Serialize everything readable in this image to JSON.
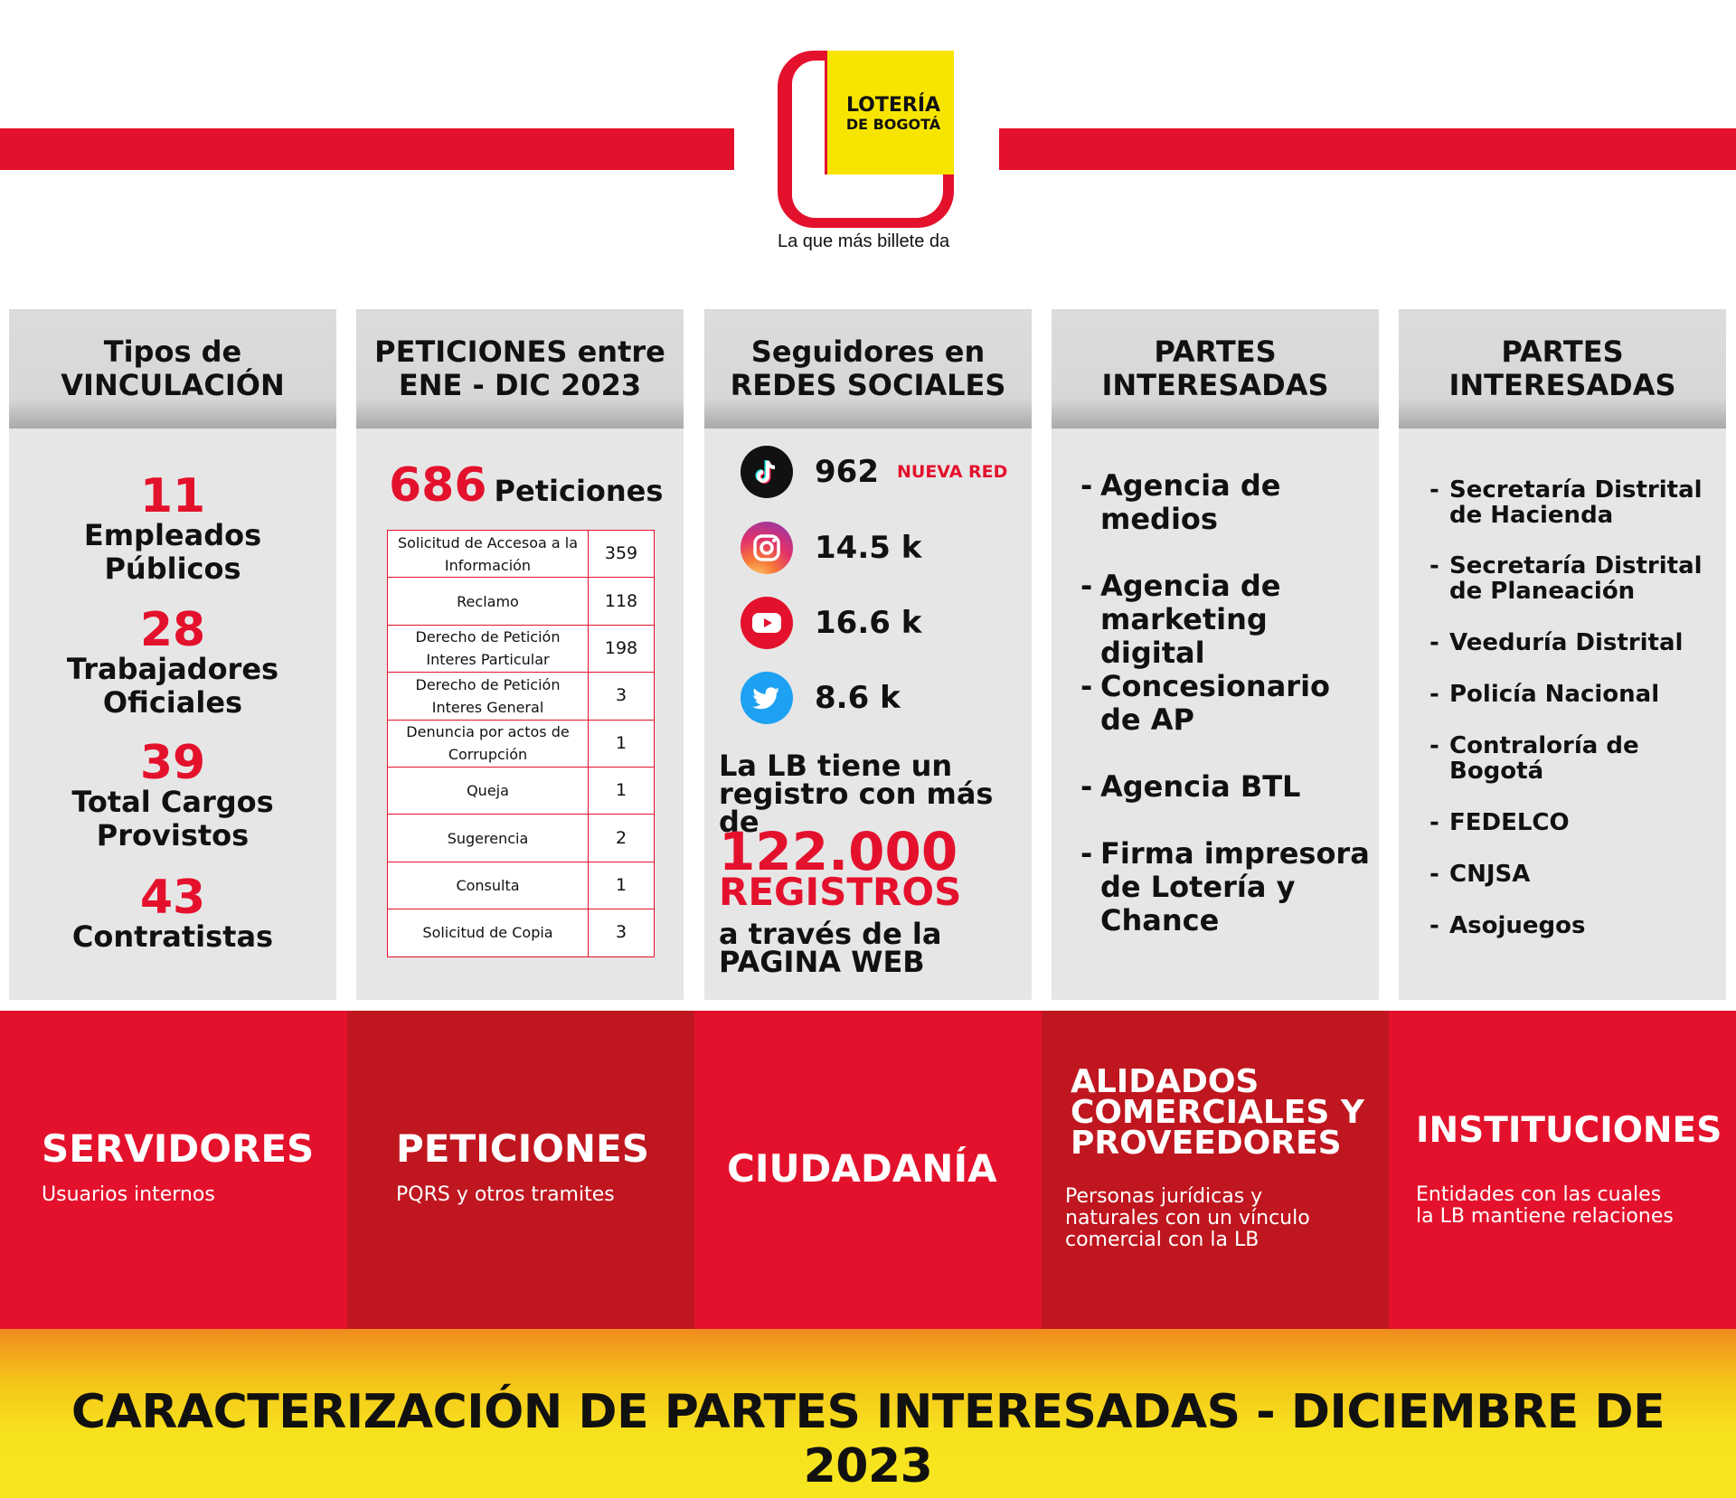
{
  "brand": {
    "logo_line1": "LOTERÍA",
    "logo_line2": "DE BOGOTÁ",
    "tagline": "La que más billete da",
    "red": "#e4112c",
    "yellow": "#f7e500"
  },
  "columns": {
    "vinculacion": {
      "title_line1": "Tipos de",
      "title_line2": "VINCULACIÓN",
      "items": [
        {
          "num": "11",
          "line1": "Empleados",
          "line2": "Públicos"
        },
        {
          "num": "28",
          "line1": "Trabajadores",
          "line2": "Oficiales"
        },
        {
          "num": "39",
          "line1": "Total Cargos",
          "line2": "Provistos"
        },
        {
          "num": "43",
          "line1": "Contratistas",
          "line2": ""
        }
      ]
    },
    "peticiones": {
      "title_line1": "PETICIONES entre",
      "title_line2": "ENE - DIC 2023",
      "total_number": "686",
      "total_label": "Peticiones",
      "rows": [
        {
          "label_line1": "Solicitud de Accesoa a la",
          "label_line2": "Información",
          "value": "359"
        },
        {
          "label_line1": "Reclamo",
          "label_line2": "",
          "value": "118"
        },
        {
          "label_line1": "Derecho de Petición",
          "label_line2": "Interes Particular",
          "value": "198"
        },
        {
          "label_line1": "Derecho de Petición",
          "label_line2": "Interes General",
          "value": "3"
        },
        {
          "label_line1": "Denuncia por actos de",
          "label_line2": "Corrupción",
          "value": "1"
        },
        {
          "label_line1": "Queja",
          "label_line2": "",
          "value": "1"
        },
        {
          "label_line1": "Sugerencia",
          "label_line2": "",
          "value": "2"
        },
        {
          "label_line1": "Consulta",
          "label_line2": "",
          "value": "1"
        },
        {
          "label_line1": "Solicitud de Copia",
          "label_line2": "",
          "value": "3"
        }
      ]
    },
    "redes": {
      "title_line1": "Seguidores en",
      "title_line2": "REDES SOCIALES",
      "networks": [
        {
          "icon": "tiktok-icon",
          "value": "962",
          "badge": "NUEVA RED"
        },
        {
          "icon": "instagram-icon",
          "value": "14.5 k"
        },
        {
          "icon": "youtube-icon",
          "value": "16.6 k"
        },
        {
          "icon": "twitter-icon",
          "value": "8.6 k"
        }
      ],
      "lb_line1": "La LB tiene un",
      "lb_line2": "registro con más de",
      "registros_number": "122.000",
      "registros_label": "REGISTROS",
      "via_line1": "a través de la",
      "via_line2": "PAGINA WEB"
    },
    "partes1": {
      "title_line1": "PARTES",
      "title_line2": "INTERESADAS",
      "items": [
        {
          "line1": "Agencia de",
          "line2": "medios"
        },
        {
          "line1": "Agencia de",
          "line2": "marketing digital"
        },
        {
          "line1": "Concesionario",
          "line2": "de AP"
        },
        {
          "line1": "Agencia BTL",
          "line2": ""
        },
        {
          "line1": "Firma impresora",
          "line2": "de Lotería y",
          "line3": "Chance"
        }
      ]
    },
    "partes2": {
      "title_line1": "PARTES",
      "title_line2": "INTERESADAS",
      "items": [
        {
          "line1": "Secretaría Distrital",
          "line2": "de Hacienda"
        },
        {
          "line1": "Secretaría Distrital",
          "line2": "de Planeación"
        },
        {
          "line1": "Veeduría Distrital",
          "line2": ""
        },
        {
          "line1": "Policía Nacional",
          "line2": ""
        },
        {
          "line1": "Contraloría de",
          "line2": "Bogotá"
        },
        {
          "line1": "FEDELCO",
          "line2": ""
        },
        {
          "line1": "CNJSA",
          "line2": ""
        },
        {
          "line1": "Asojuegos",
          "line2": ""
        }
      ]
    }
  },
  "bands": [
    {
      "title": "SERVIDORES",
      "sub_line1": "Usuarios internos",
      "color": "#e4112c"
    },
    {
      "title": "PETICIONES",
      "sub_line1": "PQRS y otros tramites",
      "color": "#c0161f"
    },
    {
      "title": "CIUDADANÍA",
      "color": "#e4112c"
    },
    {
      "title_line1": "ALIDADOS",
      "title_line2": "COMERCIALES Y",
      "title_line3": "PROVEEDORES",
      "sub_line1": "Personas jurídicas y",
      "sub_line2": "naturales con un vínculo",
      "sub_line3": "comercial con la LB",
      "color": "#c0161f"
    },
    {
      "title": "INSTITUCIONES",
      "sub_line1": "Entidades con las cuales",
      "sub_line2": "la LB mantiene relaciones",
      "color": "#e4112c"
    }
  ],
  "footer": {
    "title": "CARACTERIZACIÓN DE PARTES INTERESADAS - DICIEMBRE DE 2023"
  }
}
